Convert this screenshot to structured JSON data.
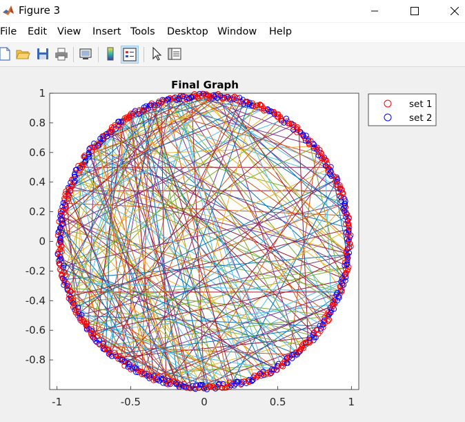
{
  "window": {
    "title": "Figure 3"
  },
  "menu": [
    "File",
    "Edit",
    "View",
    "Insert",
    "Tools",
    "Desktop",
    "Window",
    "Help"
  ],
  "toolbar": {
    "icons": [
      "new-figure-icon",
      "open-file-icon",
      "save-icon",
      "print-icon",
      "link-plot-icon",
      "insert-colorbar-icon",
      "insert-legend-icon",
      "edit-plot-icon",
      "property-inspector-icon"
    ],
    "active": "insert-legend-icon"
  },
  "chart_data": {
    "type": "scatter",
    "title": "Final Graph",
    "xlabel": "",
    "ylabel": "",
    "xlim": [
      -1.05,
      1.05
    ],
    "ylim": [
      -1,
      1
    ],
    "xticks": [
      -1,
      -0.5,
      0,
      0.5,
      1
    ],
    "xtick_labels": [
      "-1",
      "-0.5",
      "0",
      "0.5",
      "1"
    ],
    "yticks": [
      1,
      0.8,
      0.6,
      0.4,
      0.2,
      0,
      -0.2,
      -0.4,
      -0.6,
      -0.8
    ],
    "ytick_labels": [
      "1",
      "0.8",
      "0.6",
      "0.4",
      "0.2",
      "0",
      "-0.2",
      "-0.4",
      "-0.6",
      "-0.8"
    ],
    "grid": false,
    "legend": {
      "location": "outside-top-right",
      "entries": [
        "set 1",
        "set 2"
      ]
    },
    "series": [
      {
        "name": "set 1",
        "marker": "circle",
        "color": "#ff0000"
      },
      {
        "name": "set 2",
        "marker": "circle",
        "color": "#0000ff"
      }
    ],
    "unit_circle_radius": 1,
    "edge_colors": [
      "#0072bd",
      "#d95319",
      "#edb120",
      "#7e2f8e",
      "#77ac30",
      "#4dbeee",
      "#a2142f"
    ],
    "edges": [
      [
        125,
        -25
      ],
      [
        170,
        -60
      ],
      [
        150,
        -90
      ],
      [
        110,
        40
      ],
      [
        95,
        -10
      ],
      [
        135,
        -70
      ],
      [
        160,
        20
      ],
      [
        100,
        60
      ],
      [
        140,
        -30
      ],
      [
        175,
        -45
      ],
      [
        120,
        -80
      ],
      [
        155,
        -20
      ],
      [
        105,
        30
      ],
      [
        130,
        -55
      ],
      [
        145,
        5
      ],
      [
        115,
        -5
      ],
      [
        165,
        -85
      ],
      [
        100,
        -35
      ],
      [
        135,
        15
      ],
      [
        150,
        -50
      ],
      [
        125,
        -95
      ],
      [
        110,
        -15
      ],
      [
        170,
        -30
      ],
      [
        140,
        -65
      ],
      [
        95,
        45
      ],
      [
        160,
        -75
      ],
      [
        120,
        25
      ],
      [
        130,
        -40
      ],
      [
        145,
        -100
      ],
      [
        115,
        35
      ],
      [
        155,
        -5
      ],
      [
        105,
        -60
      ],
      [
        175,
        -20
      ],
      [
        135,
        -85
      ],
      [
        150,
        30
      ],
      [
        125,
        -45
      ],
      [
        165,
        10
      ],
      [
        100,
        -70
      ],
      [
        140,
        -10
      ],
      [
        110,
        -90
      ],
      [
        95,
        20
      ],
      [
        130,
        -25
      ],
      [
        160,
        -55
      ],
      [
        120,
        -110
      ],
      [
        145,
        40
      ],
      [
        170,
        -40
      ],
      [
        105,
        -25
      ],
      [
        135,
        -50
      ],
      [
        150,
        -15
      ],
      [
        115,
        -65
      ],
      [
        100,
        200
      ],
      [
        105,
        215
      ],
      [
        110,
        230
      ],
      [
        95,
        240
      ],
      [
        115,
        205
      ],
      [
        120,
        250
      ],
      [
        108,
        225
      ],
      [
        112,
        245
      ],
      [
        98,
        210
      ],
      [
        103,
        235
      ],
      [
        118,
        220
      ],
      [
        92,
        228
      ],
      [
        107,
        255
      ],
      [
        113,
        198
      ],
      [
        125,
        242
      ],
      [
        130,
        195
      ],
      [
        138,
        218
      ],
      [
        145,
        205
      ],
      [
        150,
        235
      ],
      [
        160,
        210
      ],
      [
        170,
        200
      ],
      [
        140,
        250
      ],
      [
        155,
        225
      ],
      [
        165,
        215
      ],
      [
        175,
        240
      ],
      [
        135,
        232
      ],
      [
        142,
        260
      ],
      [
        158,
        245
      ],
      [
        168,
        230
      ],
      [
        148,
        212
      ],
      [
        120,
        265
      ],
      [
        110,
        275
      ],
      [
        100,
        285
      ],
      [
        95,
        270
      ],
      [
        115,
        260
      ],
      [
        105,
        280
      ],
      [
        125,
        290
      ],
      [
        130,
        272
      ],
      [
        118,
        300
      ],
      [
        102,
        295
      ],
      [
        200,
        -20
      ],
      [
        210,
        -35
      ],
      [
        225,
        -50
      ],
      [
        240,
        -60
      ],
      [
        190,
        15
      ],
      [
        205,
        -10
      ],
      [
        218,
        -25
      ],
      [
        232,
        -40
      ],
      [
        195,
        -5
      ],
      [
        212,
        -70
      ],
      [
        250,
        -40
      ],
      [
        260,
        -30
      ],
      [
        245,
        -55
      ],
      [
        255,
        -15
      ],
      [
        265,
        -45
      ],
      [
        270,
        -20
      ],
      [
        240,
        -75
      ],
      [
        262,
        -65
      ],
      [
        248,
        -25
      ],
      [
        258,
        -80
      ],
      [
        180,
        270
      ],
      [
        185,
        260
      ],
      [
        190,
        300
      ],
      [
        200,
        280
      ],
      [
        175,
        265
      ],
      [
        195,
        255
      ],
      [
        210,
        290
      ],
      [
        205,
        275
      ],
      [
        215,
        262
      ],
      [
        188,
        310
      ],
      [
        100,
        0
      ],
      [
        108,
        -5
      ],
      [
        92,
        10
      ],
      [
        85,
        -8
      ],
      [
        80,
        -30
      ],
      [
        82,
        -15
      ],
      [
        88,
        5
      ],
      [
        96,
        -40
      ],
      [
        90,
        -20
      ],
      [
        84,
        -50
      ],
      [
        130,
        120
      ],
      [
        150,
        110
      ],
      [
        145,
        75
      ],
      [
        160,
        100
      ],
      [
        170,
        85
      ],
      [
        135,
        70
      ],
      [
        155,
        65
      ],
      [
        140,
        130
      ],
      [
        165,
        120
      ],
      [
        175,
        95
      ],
      [
        80,
        135
      ],
      [
        85,
        160
      ],
      [
        78,
        145
      ],
      [
        83,
        170
      ],
      [
        88,
        150
      ],
      [
        76,
        155
      ],
      [
        90,
        140
      ],
      [
        82,
        125
      ],
      [
        86,
        180
      ],
      [
        79,
        165
      ],
      [
        60,
        180
      ],
      [
        55,
        195
      ],
      [
        65,
        170
      ],
      [
        50,
        210
      ],
      [
        70,
        160
      ],
      [
        58,
        220
      ],
      [
        62,
        190
      ],
      [
        52,
        175
      ],
      [
        68,
        205
      ],
      [
        56,
        165
      ],
      [
        75,
        230
      ],
      [
        72,
        250
      ],
      [
        78,
        240
      ],
      [
        70,
        260
      ],
      [
        74,
        245
      ],
      [
        45,
        -20
      ],
      [
        35,
        -30
      ],
      [
        50,
        -45
      ],
      [
        30,
        -10
      ],
      [
        40,
        -55
      ],
      [
        30,
        200
      ],
      [
        25,
        215
      ],
      [
        40,
        190
      ],
      [
        20,
        225
      ],
      [
        35,
        235
      ],
      [
        10,
        220
      ],
      [
        15,
        205
      ],
      [
        5,
        230
      ],
      [
        -5,
        210
      ],
      [
        -10,
        215
      ],
      [
        20,
        270
      ],
      [
        30,
        255
      ],
      [
        25,
        280
      ],
      [
        35,
        265
      ],
      [
        15,
        260
      ],
      [
        -20,
        235
      ],
      [
        -30,
        225
      ],
      [
        -15,
        240
      ],
      [
        -25,
        250
      ],
      [
        -35,
        230
      ],
      [
        115,
        -35
      ],
      [
        125,
        -15
      ],
      [
        133,
        -5
      ],
      [
        143,
        -25
      ],
      [
        157,
        -35
      ],
      [
        167,
        -65
      ],
      [
        173,
        -95
      ],
      [
        138,
        -100
      ],
      [
        148,
        -80
      ],
      [
        158,
        -5
      ],
      [
        205,
        -45
      ],
      [
        222,
        -60
      ],
      [
        236,
        -5
      ],
      [
        228,
        -85
      ],
      [
        215,
        -100
      ],
      [
        245,
        -90
      ],
      [
        252,
        -110
      ],
      [
        198,
        -30
      ],
      [
        208,
        -75
      ],
      [
        218,
        -15
      ],
      [
        102,
        12
      ],
      [
        97,
        28
      ],
      [
        93,
        -2
      ],
      [
        89,
        18
      ],
      [
        104,
        -48
      ],
      [
        109,
        -58
      ],
      [
        111,
        -78
      ],
      [
        116,
        -88
      ],
      [
        121,
        -98
      ],
      [
        126,
        -105
      ],
      [
        105,
        195
      ],
      [
        112,
        205
      ],
      [
        118,
        212
      ],
      [
        123,
        222
      ],
      [
        128,
        228
      ],
      [
        133,
        238
      ],
      [
        137,
        248
      ],
      [
        142,
        256
      ],
      [
        147,
        266
      ],
      [
        152,
        276
      ],
      [
        160,
        -110
      ],
      [
        172,
        -115
      ],
      [
        178,
        -100
      ],
      [
        182,
        -80
      ],
      [
        186,
        -60
      ],
      [
        192,
        -40
      ],
      [
        196,
        -20
      ],
      [
        202,
        5
      ],
      [
        207,
        25
      ],
      [
        213,
        -95
      ]
    ],
    "set1_angles": [],
    "set2_angles": []
  }
}
